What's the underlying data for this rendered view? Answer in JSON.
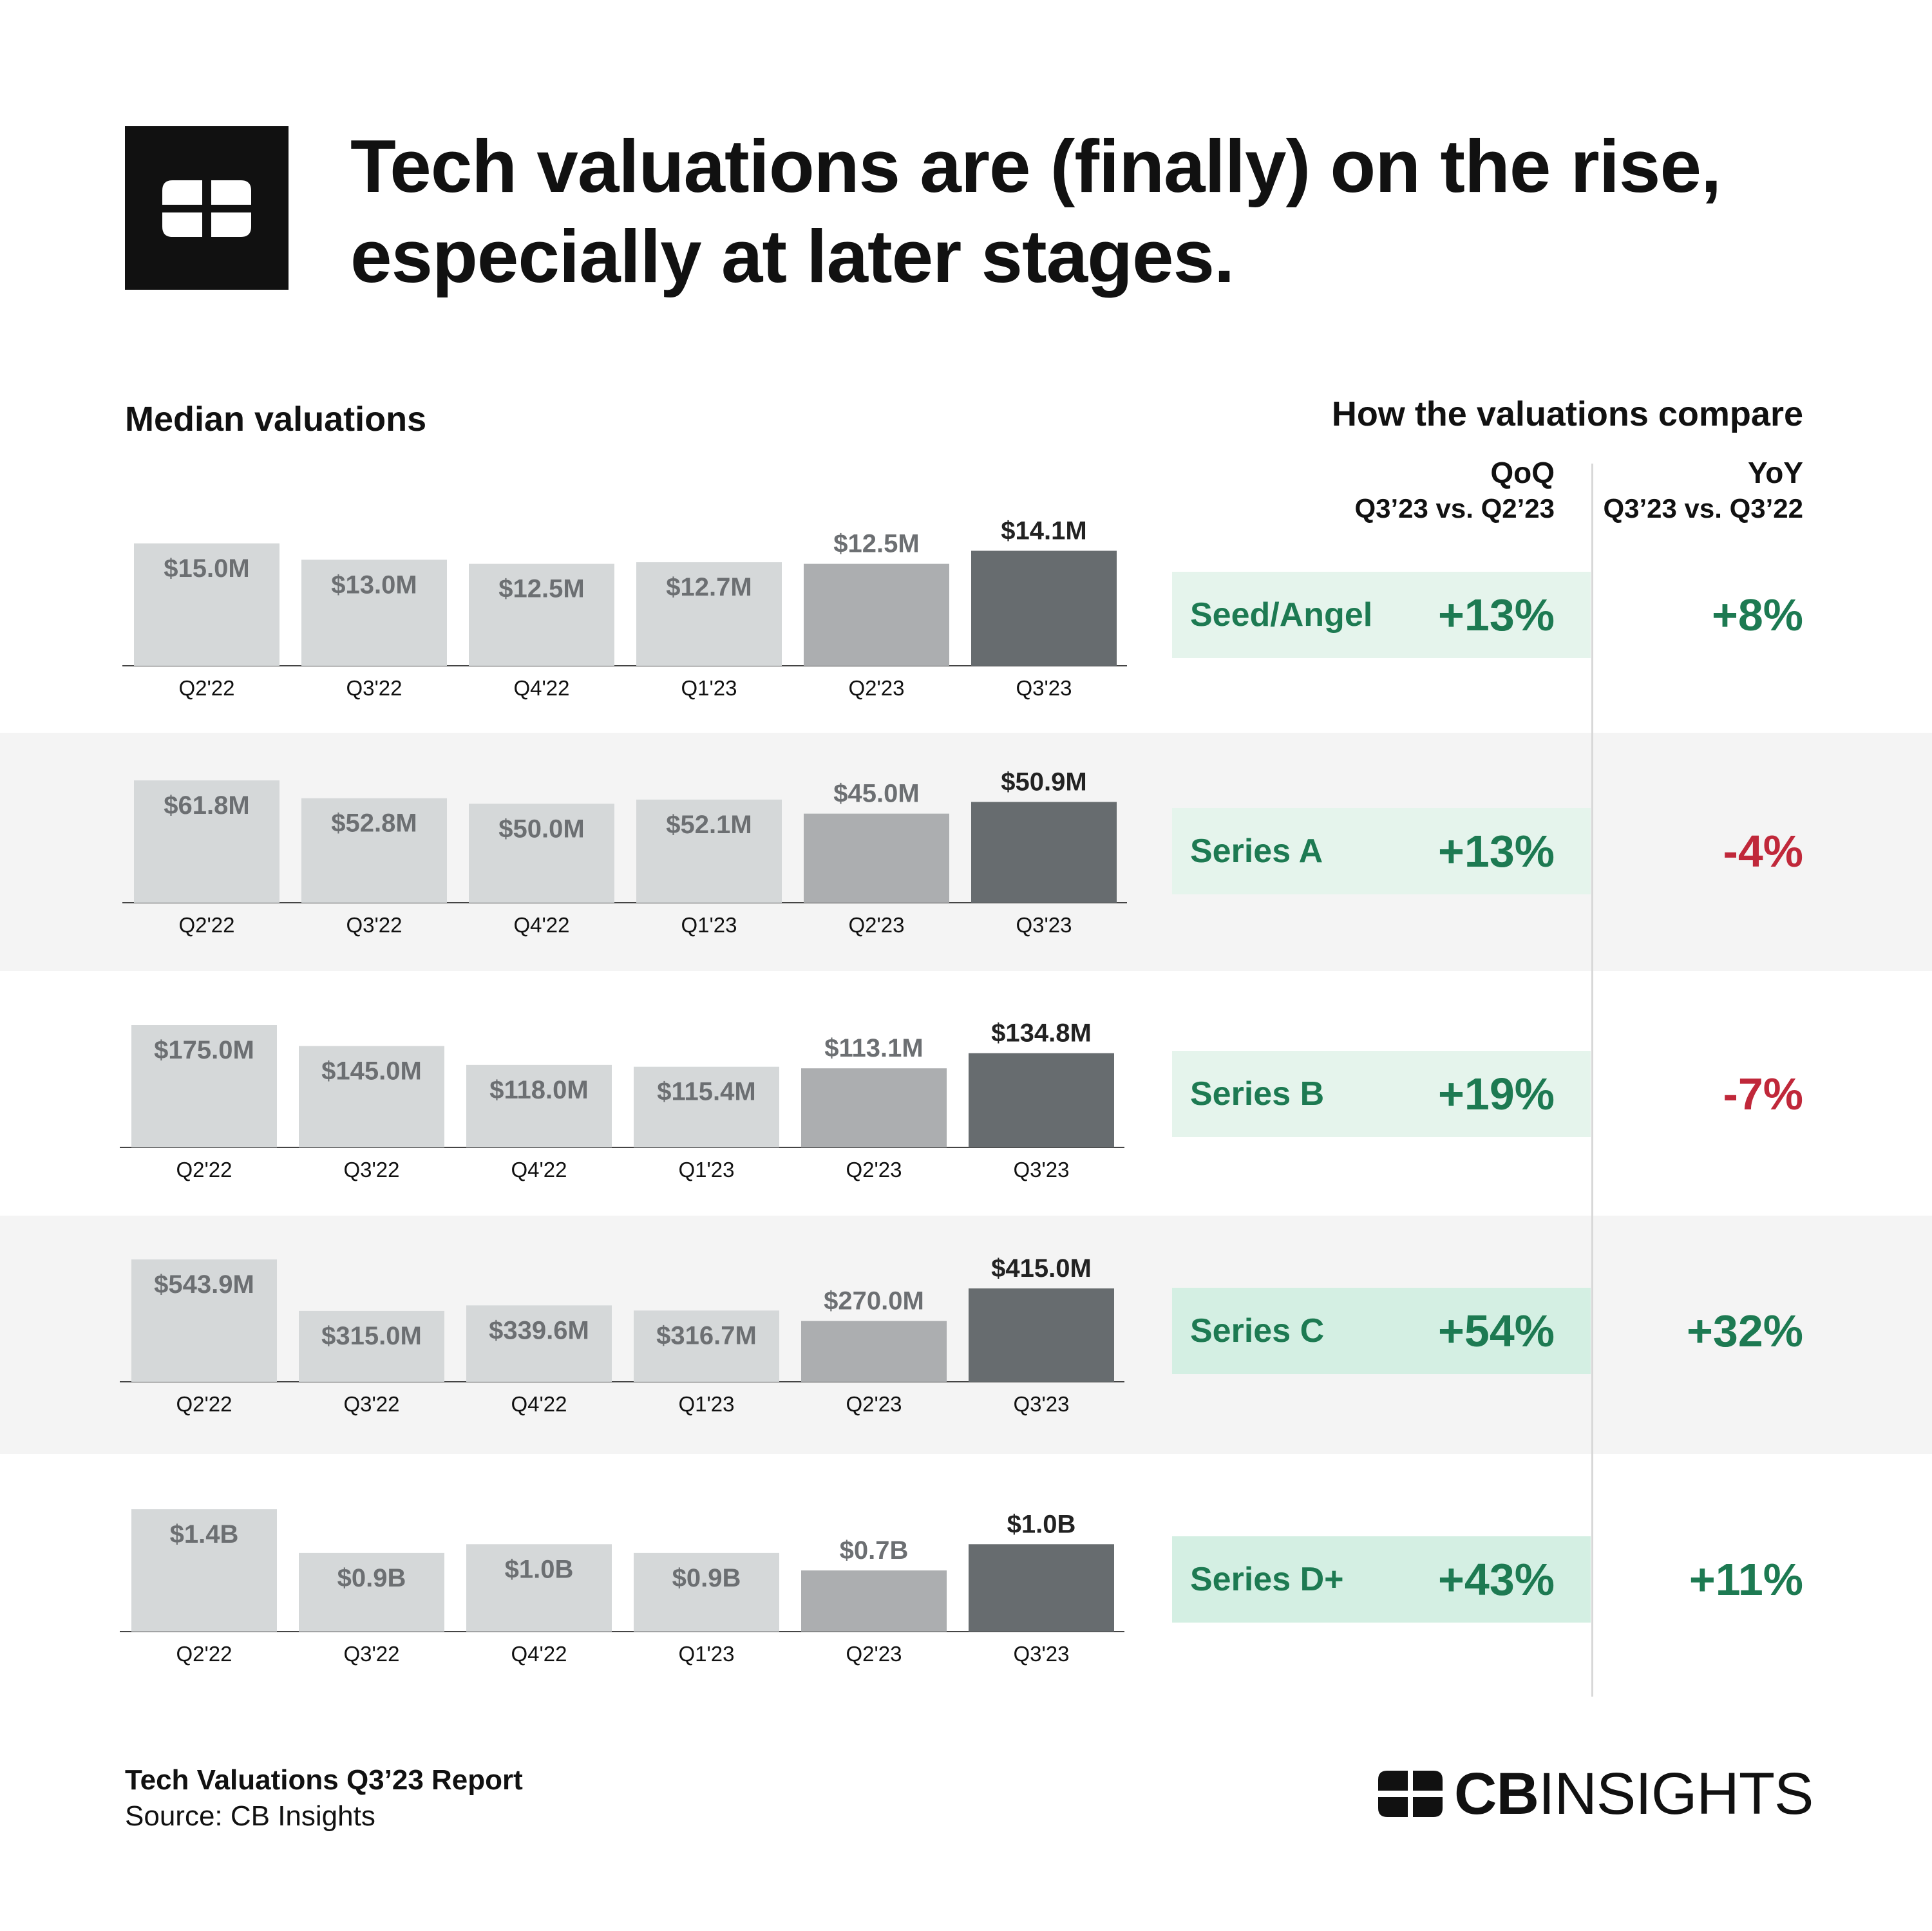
{
  "logo_icon": "cb-insights-logo-icon",
  "title_lines": [
    "Tech valuations are (finally) on the rise,",
    "especially at later stages."
  ],
  "left_heading": "Median valuations",
  "right_heading": "How the valuations compare",
  "qoq_header": {
    "label": "QoQ",
    "sub": "Q3’23 vs. Q2’23"
  },
  "yoy_header": {
    "label": "YoY",
    "sub": "Q3’23 vs. Q3’22"
  },
  "colors": {
    "bar_light": "#d5d8d9",
    "bar_mid": "#acaeb0",
    "bar_dark": "#676c6f",
    "label_muted": "#6c6f72",
    "label_dark": "#222222",
    "positive": "#1d7a52",
    "negative": "#c0283a",
    "compare_bg_light": "#e5f4ec",
    "compare_bg": "#d4efe3",
    "band": "#f4f4f4"
  },
  "chart_data": [
    {
      "type": "bar",
      "stage": "Seed/Angel",
      "categories": [
        "Q2'22",
        "Q3'22",
        "Q4'22",
        "Q1'23",
        "Q2'23",
        "Q3'23"
      ],
      "values": [
        15.0,
        13.0,
        12.5,
        12.7,
        12.5,
        14.1
      ],
      "labels": [
        "$15.0M",
        "$13.0M",
        "$12.5M",
        "$12.7M",
        "$12.5M",
        "$14.1M"
      ],
      "qoq": "+13%",
      "yoy": "+8%",
      "yoy_sign": "positive"
    },
    {
      "type": "bar",
      "stage": "Series A",
      "categories": [
        "Q2'22",
        "Q3'22",
        "Q4'22",
        "Q1'23",
        "Q2'23",
        "Q3'23"
      ],
      "values": [
        61.8,
        52.8,
        50.0,
        52.1,
        45.0,
        50.9
      ],
      "labels": [
        "$61.8M",
        "$52.8M",
        "$50.0M",
        "$52.1M",
        "$45.0M",
        "$50.9M"
      ],
      "qoq": "+13%",
      "yoy": "-4%",
      "yoy_sign": "negative"
    },
    {
      "type": "bar",
      "stage": "Series B",
      "categories": [
        "Q2'22",
        "Q3'22",
        "Q4'22",
        "Q1'23",
        "Q2'23",
        "Q3'23"
      ],
      "values": [
        175.0,
        145.0,
        118.0,
        115.4,
        113.1,
        134.8
      ],
      "labels": [
        "$175.0M",
        "$145.0M",
        "$118.0M",
        "$115.4M",
        "$113.1M",
        "$134.8M"
      ],
      "qoq": "+19%",
      "yoy": "-7%",
      "yoy_sign": "negative"
    },
    {
      "type": "bar",
      "stage": "Series C",
      "categories": [
        "Q2'22",
        "Q3'22",
        "Q4'22",
        "Q1'23",
        "Q2'23",
        "Q3'23"
      ],
      "values": [
        543.9,
        315.0,
        339.6,
        316.7,
        270.0,
        415.0
      ],
      "labels": [
        "$543.9M",
        "$315.0M",
        "$339.6M",
        "$316.7M",
        "$270.0M",
        "$415.0M"
      ],
      "qoq": "+54%",
      "yoy": "+32%",
      "yoy_sign": "positive"
    },
    {
      "type": "bar",
      "stage": "Series D+",
      "categories": [
        "Q2'22",
        "Q3'22",
        "Q4'22",
        "Q1'23",
        "Q2'23",
        "Q3'23"
      ],
      "values": [
        1.4,
        0.9,
        1.0,
        0.9,
        0.7,
        1.0
      ],
      "labels": [
        "$1.4B",
        "$0.9B",
        "$1.0B",
        "$0.9B",
        "$0.7B",
        "$1.0B"
      ],
      "qoq": "+43%",
      "yoy": "+11%",
      "yoy_sign": "positive"
    }
  ],
  "footer": {
    "report": "Tech Valuations Q3’23 Report",
    "source": "Source: CB Insights",
    "brand_bold": "CB",
    "brand_light": "INSIGHTS",
    "brand_icon": "cb-insights-logo-icon"
  }
}
